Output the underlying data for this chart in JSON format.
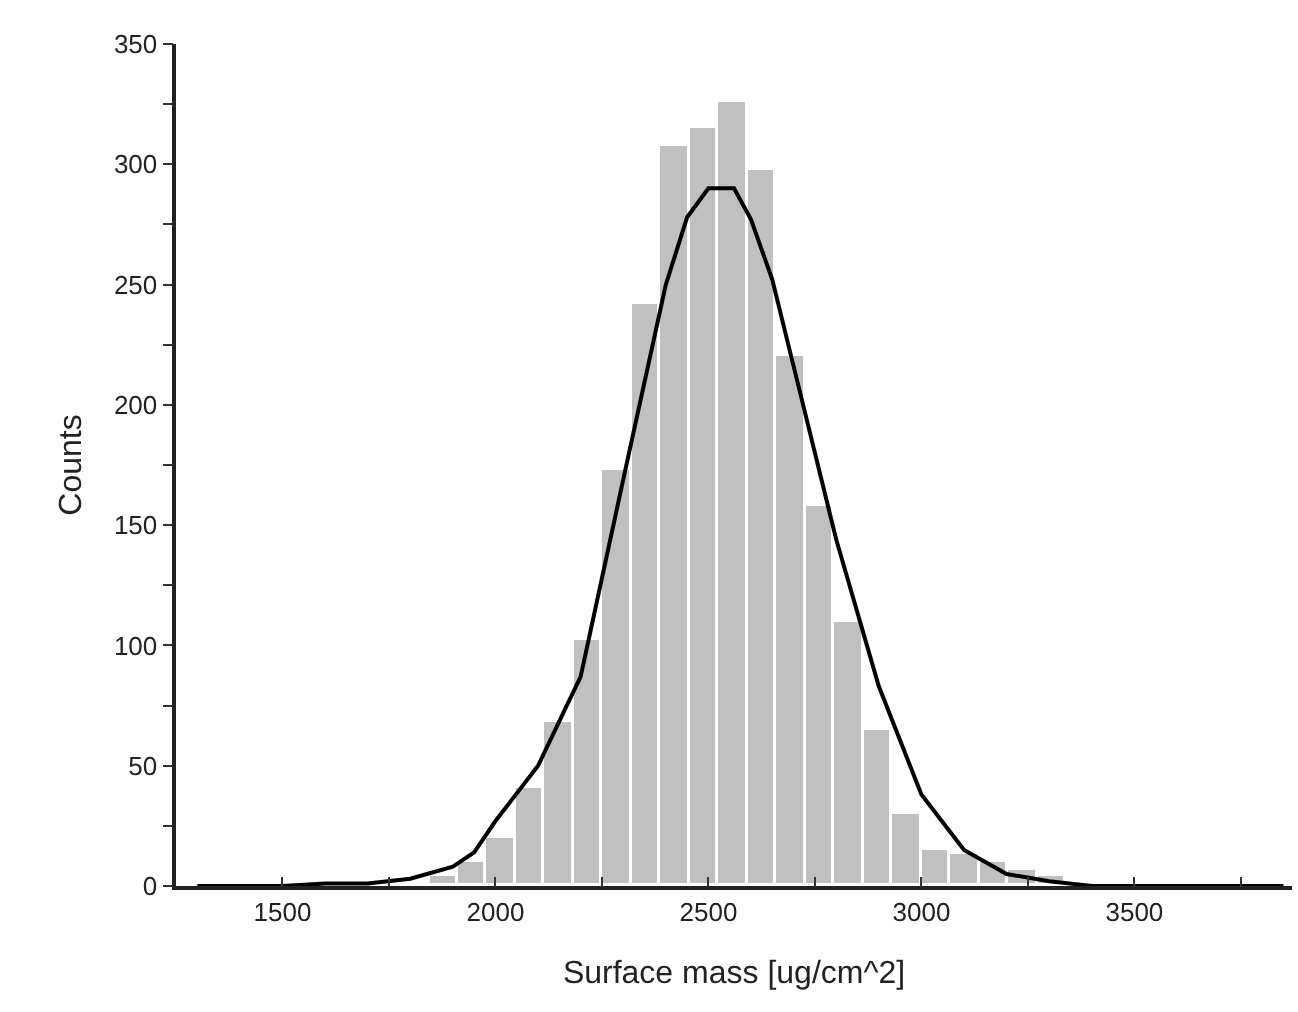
{
  "chart_data": {
    "type": "histogram",
    "xlabel": "Surface mass [ug/cm^2]",
    "ylabel": "Counts",
    "bins": [
      1844,
      1912,
      1980,
      2048,
      2116,
      2184,
      2252,
      2320,
      2388,
      2456,
      2524,
      2592,
      2660,
      2728,
      2796,
      2864,
      2932,
      3000,
      3068,
      3136,
      3204,
      3272,
      3340,
      3408,
      3476,
      3544
    ],
    "values": [
      4,
      10,
      20,
      41,
      68,
      102,
      173,
      242,
      308,
      315,
      326,
      298,
      220,
      158,
      110,
      65,
      30,
      15,
      13,
      10,
      7,
      4,
      0,
      0,
      1
    ],
    "color": "#c0c0c0",
    "series": [
      {
        "type": "line",
        "color": "#000000",
        "x": [
          1300,
          1500,
          1600,
          1700,
          1800,
          1900,
          1950,
          2000,
          2100,
          2200,
          2300,
          2400,
          2450,
          2500,
          2560,
          2600,
          2650,
          2700,
          2800,
          2900,
          3000,
          3100,
          3200,
          3300,
          3400,
          3600,
          3850
        ],
        "values": [
          0,
          0,
          1,
          1,
          3,
          8,
          14,
          27,
          50,
          87,
          169,
          250,
          278,
          290,
          290,
          277,
          252,
          216,
          144,
          83,
          38,
          15,
          5,
          2,
          0,
          0,
          0
        ]
      }
    ],
    "xlim": [
      1250,
      3870
    ],
    "ylim": [
      0,
      350
    ],
    "xticks": [
      {
        "value": 1250,
        "label": null
      },
      1500,
      {
        "value": 1750,
        "label": null
      },
      2000,
      {
        "value": 2250,
        "label": null
      },
      2500,
      {
        "value": 2750,
        "label": null
      },
      3000,
      {
        "value": 3250,
        "label": null
      },
      3500,
      {
        "value": 3750,
        "label": null
      }
    ],
    "yticks": [
      0,
      {
        "value": 25,
        "label": null
      },
      50,
      {
        "value": 75,
        "label": null
      },
      100,
      {
        "value": 125,
        "label": null
      },
      150,
      {
        "value": 175,
        "label": null
      },
      200,
      {
        "value": 225,
        "label": null
      },
      250,
      {
        "value": 275,
        "label": null
      },
      300,
      {
        "value": 325,
        "label": null
      },
      350
    ],
    "grid": false,
    "marker": "none",
    "line_style": "solid"
  }
}
